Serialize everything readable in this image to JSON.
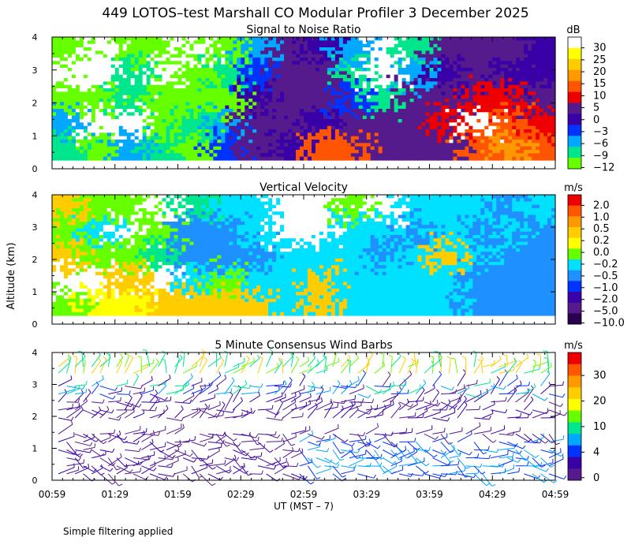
{
  "figure": {
    "title": "449 LOTOS–test Marshall CO Modular Profiler  3 December 2025",
    "ylabel": "Altitude (km)",
    "xlabel": "UT  (MST – 7)",
    "xticks": [
      "00:59",
      "01:29",
      "01:59",
      "02:29",
      "02:59",
      "03:29",
      "03:59",
      "04:29",
      "04:59"
    ],
    "yticks": [
      "0",
      "1",
      "2",
      "3",
      "4"
    ],
    "footnote": "Simple filtering applied"
  },
  "chart_data": [
    {
      "type": "heatmap",
      "title": "Signal to Noise Ratio",
      "units": "dB",
      "x_range": [
        "00:59",
        "04:59"
      ],
      "ylim": [
        0,
        4
      ],
      "colorbar_labels": [
        "30",
        "25",
        "20",
        "15",
        "10",
        "5",
        "0",
        "−3",
        "−6",
        "−9",
        "−12"
      ],
      "colors": [
        "#ffffff",
        "#ffff00",
        "#ffcc00",
        "#ff9900",
        "#ff5500",
        "#ee0000",
        "#551a8b",
        "#3a00a8",
        "#0033ff",
        "#00a8ff",
        "#00e68c",
        "#66ff00"
      ],
      "field": [
        [
          "#66ff00",
          "#ffffff",
          "#66ff00",
          "#66ff00",
          "#ffffff",
          "#66ff00",
          "#00a8ff",
          "#551a8b",
          "#3a00a8",
          "#00a8ff",
          "#ffffff",
          "#00e68c",
          "#551a8b",
          "#551a8b",
          "#551a8b",
          "#3a00a8"
        ],
        [
          "#ffffff",
          "#ffffff",
          "#00e68c",
          "#ffffff",
          "#66ff00",
          "#00e68c",
          "#0033ff",
          "#551a8b",
          "#551a8b",
          "#00e68c",
          "#ffffff",
          "#00a8ff",
          "#3a00a8",
          "#551a8b",
          "#3a00a8",
          "#3a00a8"
        ],
        [
          "#66ff00",
          "#66ff00",
          "#00e68c",
          "#66ff00",
          "#66ff00",
          "#66ff00",
          "#3a00a8",
          "#551a8b",
          "#551a8b",
          "#0033ff",
          "#00e68c",
          "#551a8b",
          "#551a8b",
          "#ee0000",
          "#ee0000",
          "#551a8b"
        ],
        [
          "#00a8ff",
          "#ffffff",
          "#ffffff",
          "#66ff00",
          "#00e68c",
          "#00a8ff",
          "#551a8b",
          "#551a8b",
          "#3a00a8",
          "#551a8b",
          "#551a8b",
          "#551a8b",
          "#ee0000",
          "#ffffff",
          "#ff5500",
          "#ee0000"
        ],
        [
          "#00e68c",
          "#66ff00",
          "#00a8ff",
          "#00e68c",
          "#66ff00",
          "#0033ff",
          "#551a8b",
          "#3a00a8",
          "#ff5500",
          "#ff5500",
          "#551a8b",
          "#551a8b",
          "#551a8b",
          "#ff5500",
          "#ff9900",
          "#ff5500"
        ]
      ]
    },
    {
      "type": "heatmap",
      "title": "Vertical Velocity",
      "units": "m/s",
      "x_range": [
        "00:59",
        "04:59"
      ],
      "ylim": [
        0,
        4
      ],
      "colorbar_labels": [
        "2.0",
        "1.0",
        "0.5",
        "0.2",
        "0.0",
        "−0.2",
        "−0.5",
        "−1.0",
        "−2.0",
        "−5.0",
        "−10.0"
      ],
      "colors": [
        "#ee0000",
        "#ff5500",
        "#ff9900",
        "#ffcc00",
        "#ffff00",
        "#66ff00",
        "#00e0ff",
        "#1e90ff",
        "#0033ff",
        "#3a00a8",
        "#551a8b",
        "#2a0050"
      ],
      "field": [
        [
          "#ffcc00",
          "#66ff00",
          "#66ff00",
          "#ffffff",
          "#00e68c",
          "#00e0ff",
          "#00e0ff",
          "#ffffff",
          "#ffffff",
          "#66ff00",
          "#ffffff",
          "#00e0ff",
          "#00e0ff",
          "#00e0ff",
          "#1e90ff",
          "#00e0ff"
        ],
        [
          "#66ff00",
          "#00e0ff",
          "#ffffff",
          "#66ff00",
          "#1e90ff",
          "#1e90ff",
          "#00e0ff",
          "#ffffff",
          "#ffffff",
          "#00e0ff",
          "#00e0ff",
          "#1e90ff",
          "#00e0ff",
          "#1e90ff",
          "#00e0ff",
          "#1e90ff"
        ],
        [
          "#ffcc00",
          "#66ff00",
          "#66ff00",
          "#00e68c",
          "#1e90ff",
          "#1e90ff",
          "#1e90ff",
          "#00e0ff",
          "#00e0ff",
          "#00e0ff",
          "#1e90ff",
          "#00e0ff",
          "#ffcc00",
          "#00e0ff",
          "#1e90ff",
          "#1e90ff"
        ],
        [
          "#ffffff",
          "#ffffff",
          "#ffcc00",
          "#ffffff",
          "#00e0ff",
          "#66ff00",
          "#00e0ff",
          "#00e0ff",
          "#ffcc00",
          "#00e0ff",
          "#00e0ff",
          "#00e0ff",
          "#00e0ff",
          "#1e90ff",
          "#1e90ff",
          "#1e90ff"
        ],
        [
          "#66ff00",
          "#ffff00",
          "#ffff00",
          "#ffcc00",
          "#ffcc00",
          "#ffcc00",
          "#ffcc00",
          "#00e0ff",
          "#ffcc00",
          "#00e0ff",
          "#00e0ff",
          "#00e0ff",
          "#00e0ff",
          "#1e90ff",
          "#1e90ff",
          "#1e90ff"
        ]
      ]
    },
    {
      "type": "barbs",
      "title": "5 Minute Consensus Wind Barbs",
      "units": "m/s",
      "x_range": [
        "00:59",
        "04:59"
      ],
      "ylim": [
        0,
        4
      ],
      "colorbar_labels": [
        "30",
        "20",
        "10",
        "4",
        "0"
      ],
      "colors": [
        "#ee0000",
        "#ff5500",
        "#ff9900",
        "#ffcc00",
        "#ffff00",
        "#66ff00",
        "#00e68c",
        "#00a8ff",
        "#0033ff",
        "#3a00a8",
        "#551a8b"
      ],
      "barb_levels_km": [
        0.2,
        0.45,
        0.7,
        0.95,
        1.2,
        1.45,
        1.95,
        2.2,
        2.45,
        2.7,
        2.95,
        3.35,
        3.55
      ]
    }
  ]
}
